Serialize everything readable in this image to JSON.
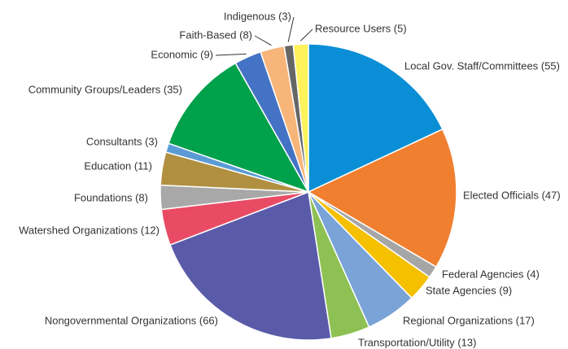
{
  "chart_data": {
    "type": "pie",
    "categories": [
      "Local Gov. Staff/Committees (55)",
      "Elected Officials (47)",
      "Federal Agencies (4)",
      "State Agencies (9)",
      "Regional Organizations (17)",
      "Transportation/Utility (13)",
      "Nongovernmental Organizations (66)",
      "Watershed Organizations (12)",
      "Foundations (8)",
      "Education (11)",
      "Consultants (3)",
      "Community Groups/Leaders (35)",
      "Economic (9)",
      "Faith-Based (8)",
      "Indigenous (3)",
      "Resource Users (5)"
    ],
    "values": [
      55,
      47,
      4,
      9,
      17,
      13,
      66,
      12,
      8,
      11,
      3,
      35,
      9,
      8,
      3,
      5
    ],
    "colors": [
      "#0a8fd6",
      "#f07f2f",
      "#a6a6a6",
      "#f5c000",
      "#7aa3d8",
      "#8dc153",
      "#5a5ba8",
      "#e94b64",
      "#a8a8a8",
      "#b09040",
      "#5a9bd5",
      "#00a14b",
      "#4472c4",
      "#f8b57a",
      "#666666",
      "#fff25a"
    ]
  }
}
